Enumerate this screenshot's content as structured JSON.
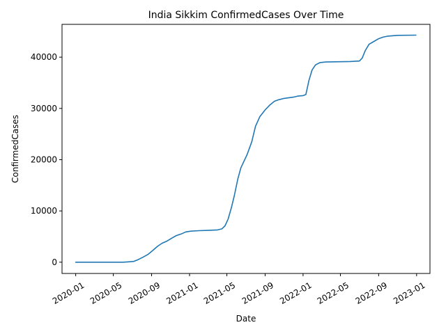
{
  "chart_data": {
    "type": "line",
    "title": "India Sikkim ConfirmedCases Over Time",
    "xlabel": "Date",
    "ylabel": "ConfirmedCases",
    "x_axis": "date",
    "xlim": [
      "2019-11-18",
      "2023-02-13"
    ],
    "ylim": [
      -2200,
      46400
    ],
    "x_ticks": [
      "2020-01",
      "2020-05",
      "2020-09",
      "2021-01",
      "2021-05",
      "2021-09",
      "2022-01",
      "2022-05",
      "2022-09",
      "2023-01"
    ],
    "y_ticks": [
      0,
      10000,
      20000,
      30000,
      40000
    ],
    "grid": false,
    "line_color": "#1f77b4",
    "series": [
      {
        "values": [
          [
            "2020-01-01",
            0
          ],
          [
            "2020-06-01",
            0
          ],
          [
            "2020-06-15",
            60
          ],
          [
            "2020-07-05",
            150
          ],
          [
            "2020-07-20",
            500
          ],
          [
            "2020-08-05",
            1000
          ],
          [
            "2020-08-20",
            1500
          ],
          [
            "2020-09-05",
            2300
          ],
          [
            "2020-09-20",
            3100
          ],
          [
            "2020-10-05",
            3700
          ],
          [
            "2020-10-20",
            4100
          ],
          [
            "2020-11-05",
            4700
          ],
          [
            "2020-11-20",
            5200
          ],
          [
            "2020-12-05",
            5500
          ],
          [
            "2020-12-20",
            5900
          ],
          [
            "2021-01-05",
            6050
          ],
          [
            "2021-02-01",
            6150
          ],
          [
            "2021-03-01",
            6200
          ],
          [
            "2021-04-01",
            6300
          ],
          [
            "2021-04-15",
            6500
          ],
          [
            "2021-04-25",
            7100
          ],
          [
            "2021-05-05",
            8400
          ],
          [
            "2021-05-15",
            10500
          ],
          [
            "2021-05-25",
            13000
          ],
          [
            "2021-06-05",
            16200
          ],
          [
            "2021-06-15",
            18400
          ],
          [
            "2021-06-25",
            19700
          ],
          [
            "2021-07-05",
            21000
          ],
          [
            "2021-07-20",
            23500
          ],
          [
            "2021-08-01",
            26500
          ],
          [
            "2021-08-15",
            28400
          ],
          [
            "2021-09-01",
            29700
          ],
          [
            "2021-09-15",
            30600
          ],
          [
            "2021-10-01",
            31400
          ],
          [
            "2021-10-15",
            31700
          ],
          [
            "2021-11-01",
            31950
          ],
          [
            "2021-12-01",
            32200
          ],
          [
            "2021-12-15",
            32400
          ],
          [
            "2022-01-01",
            32500
          ],
          [
            "2022-01-10",
            32700
          ],
          [
            "2022-01-20",
            35500
          ],
          [
            "2022-01-30",
            37500
          ],
          [
            "2022-02-10",
            38500
          ],
          [
            "2022-02-25",
            38950
          ],
          [
            "2022-03-15",
            39050
          ],
          [
            "2022-04-15",
            39100
          ],
          [
            "2022-06-01",
            39150
          ],
          [
            "2022-07-01",
            39250
          ],
          [
            "2022-07-10",
            39800
          ],
          [
            "2022-07-20",
            41300
          ],
          [
            "2022-08-01",
            42500
          ],
          [
            "2022-08-15",
            43000
          ],
          [
            "2022-09-01",
            43600
          ],
          [
            "2022-09-15",
            43900
          ],
          [
            "2022-10-01",
            44100
          ],
          [
            "2022-11-01",
            44250
          ],
          [
            "2022-12-30",
            44300
          ]
        ]
      }
    ]
  }
}
